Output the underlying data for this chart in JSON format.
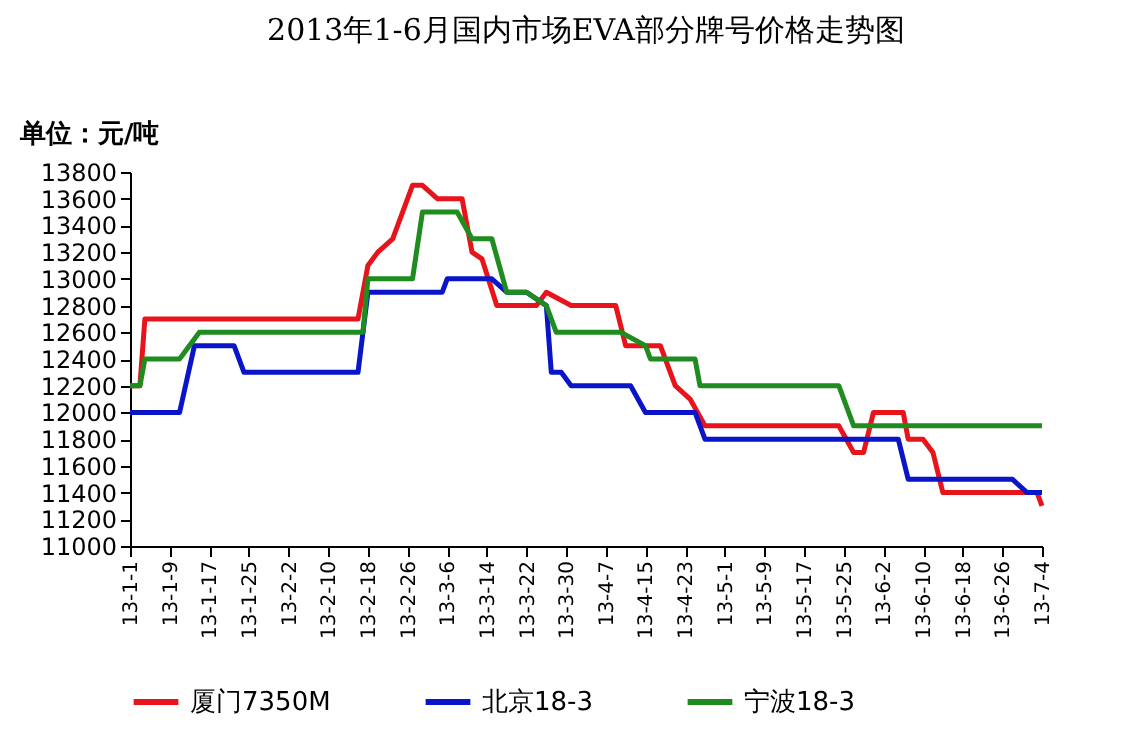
{
  "chart_data": {
    "type": "line",
    "title": "2013年1-6月国内市场EVA部分牌号价格走势图",
    "annotations": [
      "单位：元/吨"
    ],
    "ylim": [
      11000,
      13800
    ],
    "yticks": [
      11000,
      11200,
      11400,
      11600,
      11800,
      12000,
      12200,
      12400,
      12600,
      12800,
      13000,
      13200,
      13400,
      13600,
      13800
    ],
    "xlim": [
      "2013-01-01",
      "2013-07-04"
    ],
    "xticks": [
      {
        "value": "2013-01-01",
        "label": "13-1-1"
      },
      {
        "value": "2013-01-09",
        "label": "13-1-9"
      },
      {
        "value": "2013-01-17",
        "label": "13-1-17"
      },
      {
        "value": "2013-01-25",
        "label": "13-1-25"
      },
      {
        "value": "2013-02-02",
        "label": "13-2-2"
      },
      {
        "value": "2013-02-10",
        "label": "13-2-10"
      },
      {
        "value": "2013-02-18",
        "label": "13-2-18"
      },
      {
        "value": "2013-02-26",
        "label": "13-2-26"
      },
      {
        "value": "2013-03-06",
        "label": "13-3-6"
      },
      {
        "value": "2013-03-14",
        "label": "13-3-14"
      },
      {
        "value": "2013-03-22",
        "label": "13-3-22"
      },
      {
        "value": "2013-03-30",
        "label": "13-3-30"
      },
      {
        "value": "2013-04-07",
        "label": "13-4-7"
      },
      {
        "value": "2013-04-15",
        "label": "13-4-15"
      },
      {
        "value": "2013-04-23",
        "label": "13-4-23"
      },
      {
        "value": "2013-05-01",
        "label": "13-5-1"
      },
      {
        "value": "2013-05-09",
        "label": "13-5-9"
      },
      {
        "value": "2013-05-17",
        "label": "13-5-17"
      },
      {
        "value": "2013-05-25",
        "label": "13-5-25"
      },
      {
        "value": "2013-06-02",
        "label": "13-6-2"
      },
      {
        "value": "2013-06-10",
        "label": "13-6-10"
      },
      {
        "value": "2013-06-18",
        "label": "13-6-18"
      },
      {
        "value": "2013-06-26",
        "label": "13-6-26"
      },
      {
        "value": "2013-07-04",
        "label": "13-7-4"
      }
    ],
    "grid": false,
    "legend": "bottom",
    "marker": "none",
    "line_style": "solid",
    "series": [
      {
        "name": "厦门7350M",
        "color": "#e8141b",
        "x": [
          "2013-01-01",
          "2013-01-03",
          "2013-01-04",
          "2013-02-16",
          "2013-02-18",
          "2013-02-20",
          "2013-02-23",
          "2013-02-25",
          "2013-02-27",
          "2013-03-01",
          "2013-03-04",
          "2013-03-09",
          "2013-03-11",
          "2013-03-13",
          "2013-03-16",
          "2013-03-24",
          "2013-03-26",
          "2013-03-31",
          "2013-04-09",
          "2013-04-11",
          "2013-04-18",
          "2013-04-21",
          "2013-04-24",
          "2013-04-27",
          "2013-05-24",
          "2013-05-27",
          "2013-05-29",
          "2013-05-31",
          "2013-06-06",
          "2013-06-07",
          "2013-06-10",
          "2013-06-12",
          "2013-06-14",
          "2013-07-03",
          "2013-07-04"
        ],
        "values": [
          12200,
          12200,
          12700,
          12700,
          13100,
          13200,
          13300,
          13500,
          13700,
          13700,
          13600,
          13600,
          13200,
          13150,
          12800,
          12800,
          12900,
          12800,
          12800,
          12500,
          12500,
          12200,
          12100,
          11900,
          11900,
          11700,
          11700,
          12000,
          12000,
          11800,
          11800,
          11700,
          11400,
          11400,
          11300
        ]
      },
      {
        "name": "北京18-3",
        "color": "#0a14c8",
        "x": [
          "2013-01-01",
          "2013-01-11",
          "2013-01-14",
          "2013-01-22",
          "2013-01-24",
          "2013-02-16",
          "2013-02-18",
          "2013-03-05",
          "2013-03-06",
          "2013-03-15",
          "2013-03-18",
          "2013-03-22",
          "2013-03-26",
          "2013-03-27",
          "2013-03-29",
          "2013-03-31",
          "2013-04-12",
          "2013-04-15",
          "2013-04-25",
          "2013-04-27",
          "2013-06-05",
          "2013-06-07",
          "2013-06-28",
          "2013-07-01",
          "2013-07-04"
        ],
        "values": [
          12000,
          12000,
          12500,
          12500,
          12300,
          12300,
          12900,
          12900,
          13000,
          13000,
          12900,
          12900,
          12800,
          12300,
          12300,
          12200,
          12200,
          12000,
          12000,
          11800,
          11800,
          11500,
          11500,
          11400,
          11400
        ]
      },
      {
        "name": "宁波18-3",
        "color": "#1e8c1e",
        "x": [
          "2013-01-01",
          "2013-01-03",
          "2013-01-04",
          "2013-01-11",
          "2013-01-15",
          "2013-02-17",
          "2013-02-18",
          "2013-02-27",
          "2013-03-01",
          "2013-03-08",
          "2013-03-11",
          "2013-03-15",
          "2013-03-18",
          "2013-03-22",
          "2013-03-26",
          "2013-03-28",
          "2013-04-10",
          "2013-04-15",
          "2013-04-16",
          "2013-04-25",
          "2013-04-26",
          "2013-05-24",
          "2013-05-27",
          "2013-07-04"
        ],
        "values": [
          12200,
          12200,
          12400,
          12400,
          12600,
          12600,
          13000,
          13000,
          13500,
          13500,
          13300,
          13300,
          12900,
          12900,
          12800,
          12600,
          12600,
          12500,
          12400,
          12400,
          12200,
          12200,
          11900,
          11900
        ]
      }
    ]
  }
}
